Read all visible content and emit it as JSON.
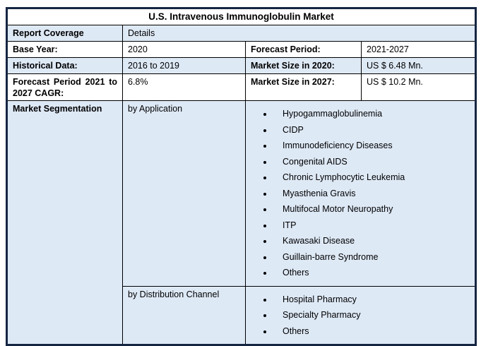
{
  "colors": {
    "row_alt": "#dee9f6",
    "border_inner": "#000000",
    "border_outer": "#152642"
  },
  "table": {
    "title": "U.S. Intravenous Immunoglobulin Market",
    "report_coverage": {
      "label": "Report Coverage",
      "value": "Details"
    },
    "base_year": {
      "label": "Base Year:",
      "value": "2020"
    },
    "forecast_period": {
      "label": "Forecast Period:",
      "value": "2021-2027"
    },
    "historical_data": {
      "label": "Historical Data:",
      "value": "2016 to 2019"
    },
    "market_size_2020": {
      "label": "Market Size in 2020:",
      "value": "US $ 6.48 Mn."
    },
    "cagr": {
      "label": "Forecast Period 2021 to 2027 CAGR:",
      "value": "6.8%"
    },
    "market_size_2027": {
      "label": "Market Size in 2027:",
      "value": "US $ 10.2 Mn."
    },
    "segmentation": {
      "label": "Market Segmentation",
      "by_application": {
        "label": "by Application",
        "items": [
          "Hypogammaglobulinemia",
          "CIDP",
          "Immunodeficiency Diseases",
          "Congenital AIDS",
          "Chronic Lymphocytic Leukemia",
          "Myasthenia Gravis",
          "Multifocal Motor Neuropathy",
          "ITP",
          "Kawasaki Disease",
          "Guillain-barre Syndrome",
          "Others"
        ]
      },
      "by_distribution_channel": {
        "label": "by Distribution Channel",
        "items": [
          "Hospital Pharmacy",
          "Specialty Pharmacy",
          "Others"
        ]
      }
    }
  }
}
